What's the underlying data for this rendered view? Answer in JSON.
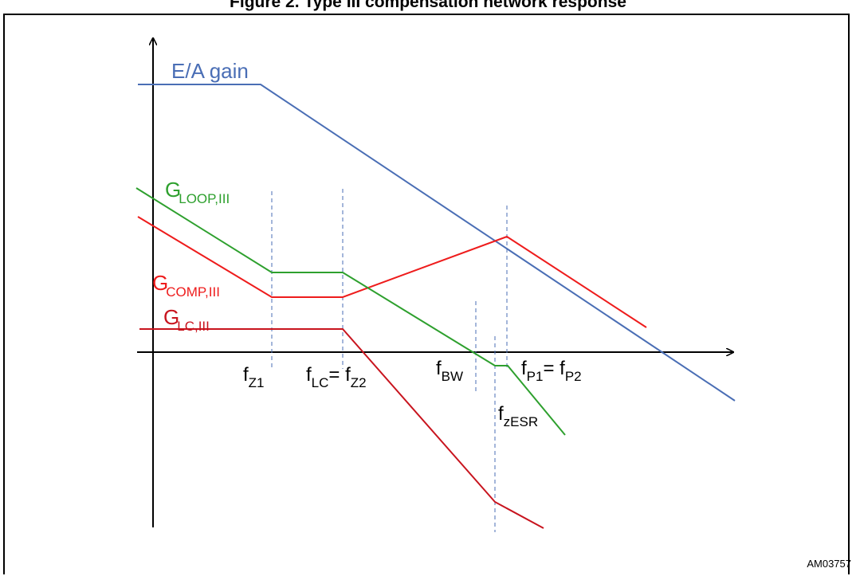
{
  "figure": {
    "title": "Figure 2. Type III compensation network response",
    "id": "AM03757"
  },
  "curves": {
    "ea_gain": {
      "prefix": "E/A gain",
      "sub": "",
      "color": "#4a6eb5"
    },
    "g_loop": {
      "prefix": "G",
      "sub": "LOOP,III",
      "color": "#2ea02e"
    },
    "g_comp": {
      "prefix": "G",
      "sub": "COMP,III",
      "color": "#ee1c1c"
    },
    "g_lc": {
      "prefix": "G",
      "sub": "LC,III",
      "color": "#c8141e"
    }
  },
  "freq_labels": {
    "fz1": {
      "f": "f",
      "sub": "Z1"
    },
    "flc": {
      "f": "f",
      "sub": "LC",
      "eq": "= f",
      "sub2": "Z2"
    },
    "fbw": {
      "f": "f",
      "sub": "BW"
    },
    "fp": {
      "f": "f",
      "sub": "P1",
      "eq": "= f",
      "sub2": "P2"
    },
    "fzesr": {
      "f": "f",
      "sub": "zESR"
    }
  },
  "colors": {
    "axis": "#000000",
    "marker": "#4a6eb5"
  }
}
